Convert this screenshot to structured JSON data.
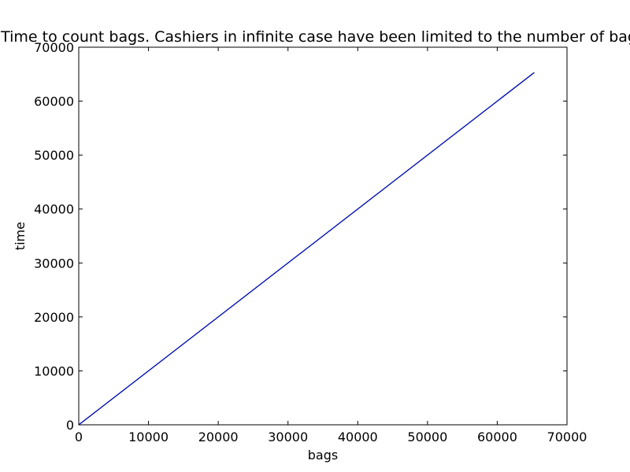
{
  "chart_data": {
    "type": "line",
    "title": "Time to count bags. Cashiers in infinite case have been limited to the number of bags",
    "xlabel": "bags",
    "ylabel": "time",
    "xlim": [
      0,
      70000
    ],
    "ylim": [
      0,
      70000
    ],
    "x_ticks": [
      0,
      10000,
      20000,
      30000,
      40000,
      50000,
      60000,
      70000
    ],
    "y_ticks": [
      0,
      10000,
      20000,
      30000,
      40000,
      50000,
      60000,
      70000
    ],
    "x_tick_labels": [
      "0",
      "10000",
      "20000",
      "30000",
      "40000",
      "50000",
      "60000",
      "70000"
    ],
    "y_tick_labels": [
      "0",
      "10000",
      "20000",
      "30000",
      "40000",
      "50000",
      "60000",
      "70000"
    ],
    "grid": false,
    "series": [
      {
        "color": "#008000",
        "x": [
          0,
          65300
        ],
        "y": [
          0,
          65300
        ]
      },
      {
        "color": "#0000cc",
        "x": [
          0,
          65300
        ],
        "y": [
          0,
          65300
        ]
      }
    ]
  }
}
